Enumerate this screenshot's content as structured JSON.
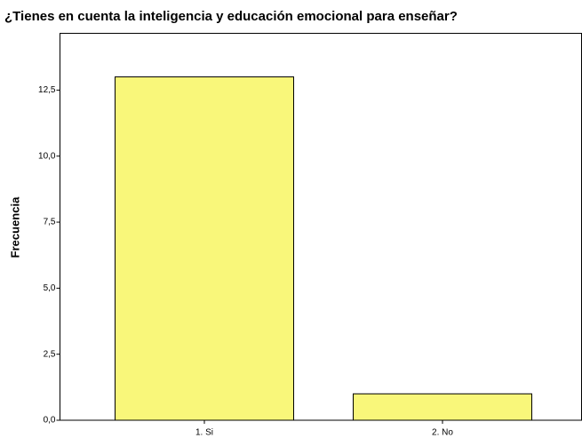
{
  "chart_data": {
    "type": "bar",
    "title": "¿Tienes en cuenta la inteligencia y educación emocional para enseñar?",
    "y_label": "Frecuencia",
    "categories": [
      "1. Si",
      "2. No"
    ],
    "values": [
      13,
      1
    ],
    "color": "#f9f77a",
    "ylim": [
      0,
      14.65
    ],
    "yticks": [
      {
        "value": 0,
        "label": "0,0"
      },
      {
        "value": 2.5,
        "label": "2,5"
      },
      {
        "value": 5,
        "label": "5,0"
      },
      {
        "value": 7.5,
        "label": "7,5"
      },
      {
        "value": 10,
        "label": "10,0"
      },
      {
        "value": 12.5,
        "label": "12,5"
      }
    ],
    "grid": false
  }
}
